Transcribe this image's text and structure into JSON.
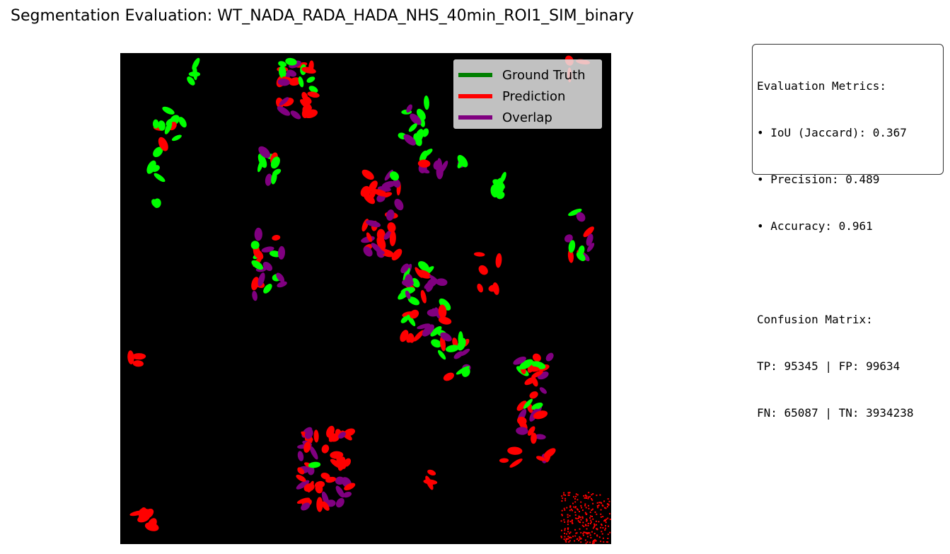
{
  "figure": {
    "title": "Segmentation Evaluation: WT_NADA_RADA_HADA_NHS_40min_ROI1_SIM_binary"
  },
  "legend": {
    "items": [
      {
        "label": "Ground Truth",
        "color": "#008000"
      },
      {
        "label": "Prediction",
        "color": "#ff0000"
      },
      {
        "label": "Overlap",
        "color": "#800080"
      }
    ]
  },
  "metrics": {
    "header": "Evaluation Metrics:",
    "iou": "• IoU (Jaccard): 0.367",
    "precision": "• Precision: 0.489",
    "accuracy": "• Accuracy: 0.961",
    "confusion_header": "Confusion Matrix:",
    "row1": "TP: 95345 | FP: 99634",
    "row2": "FN: 65087 | TN: 3934238"
  },
  "colors": {
    "ground_truth_pixels": "#00ff00",
    "prediction_pixels": "#ff0000",
    "overlap_pixels": "#800080",
    "background": "#000000"
  }
}
